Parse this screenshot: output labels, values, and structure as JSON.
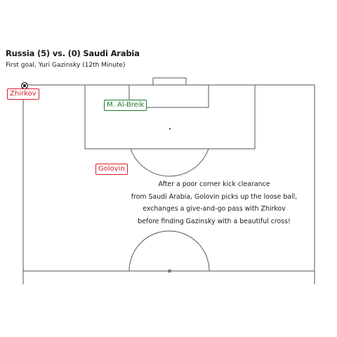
{
  "header": {
    "title": "Russia (5) vs. (0) Saudi Arabia",
    "subtitle": "First goal, Yuri Gazinsky (12th Minute)"
  },
  "players": [
    {
      "name": "Zhirkov",
      "team": "red"
    },
    {
      "name": "M. Al-Breik",
      "team": "green"
    },
    {
      "name": "Golovin",
      "team": "red"
    }
  ],
  "description": [
    "After a poor corner kick clearance",
    "from Saudi Arabia, Golovin picks up the loose ball,",
    "exchanges a give-and-go pass with Zhirkov",
    "before finding Gazinsky with a beautiful cross!"
  ],
  "colors": {
    "russia": "#d41f26",
    "saudi_arabia": "#1e7b2e",
    "pitch_lines": "#555555"
  }
}
